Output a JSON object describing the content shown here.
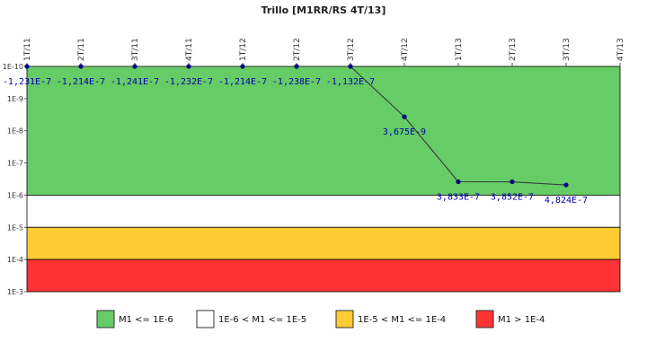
{
  "chart_data": {
    "type": "line",
    "title": "Trillo [M1RR/RS 4T/13]",
    "y_scale": "log",
    "y_inverted": true,
    "y_range": [
      1e-10,
      0.001
    ],
    "y_ticks": [
      "1E-10",
      "1E-9",
      "1E-8",
      "1E-7",
      "1E-6",
      "1E-5",
      "1E-4",
      "1E-3"
    ],
    "categories": [
      "1T/11",
      "2T/11",
      "3T/11",
      "4T/11",
      "1T/12",
      "2T/12",
      "3T/12",
      "4T/12",
      "1T/13",
      "2T/13",
      "3T/13",
      "4T/13"
    ],
    "series": [
      {
        "values": [
          1e-10,
          1e-10,
          1e-10,
          1e-10,
          1e-10,
          1e-10,
          1e-10,
          3.675e-09,
          3.833e-07,
          3.852e-07,
          4.824e-07,
          null
        ],
        "labels": [
          "-1,231E-7",
          "-1,214E-7",
          "-1,241E-7",
          "-1,232E-7",
          "-1,214E-7",
          "-1,238E-7",
          "-1,132E-7",
          "3,675E-9",
          "3,833E-7",
          "3,852E-7",
          "4,824E-7",
          ""
        ],
        "line_color": "#333333",
        "marker_color": "#000080"
      }
    ],
    "bands": [
      {
        "from": 1e-10,
        "to": 1e-06,
        "color": "#66cc66",
        "label": "M1 <= 1E-6"
      },
      {
        "from": 1e-06,
        "to": 1e-05,
        "color": "#ffffff",
        "label": "1E-6 < M1 <= 1E-5"
      },
      {
        "from": 1e-05,
        "to": 0.0001,
        "color": "#ffcc33",
        "label": "1E-5 < M1 <= 1E-4"
      },
      {
        "from": 0.0001,
        "to": 0.001,
        "color": "#ff3333",
        "label": "M1 > 1E-4"
      }
    ],
    "legend_position": "bottom"
  }
}
